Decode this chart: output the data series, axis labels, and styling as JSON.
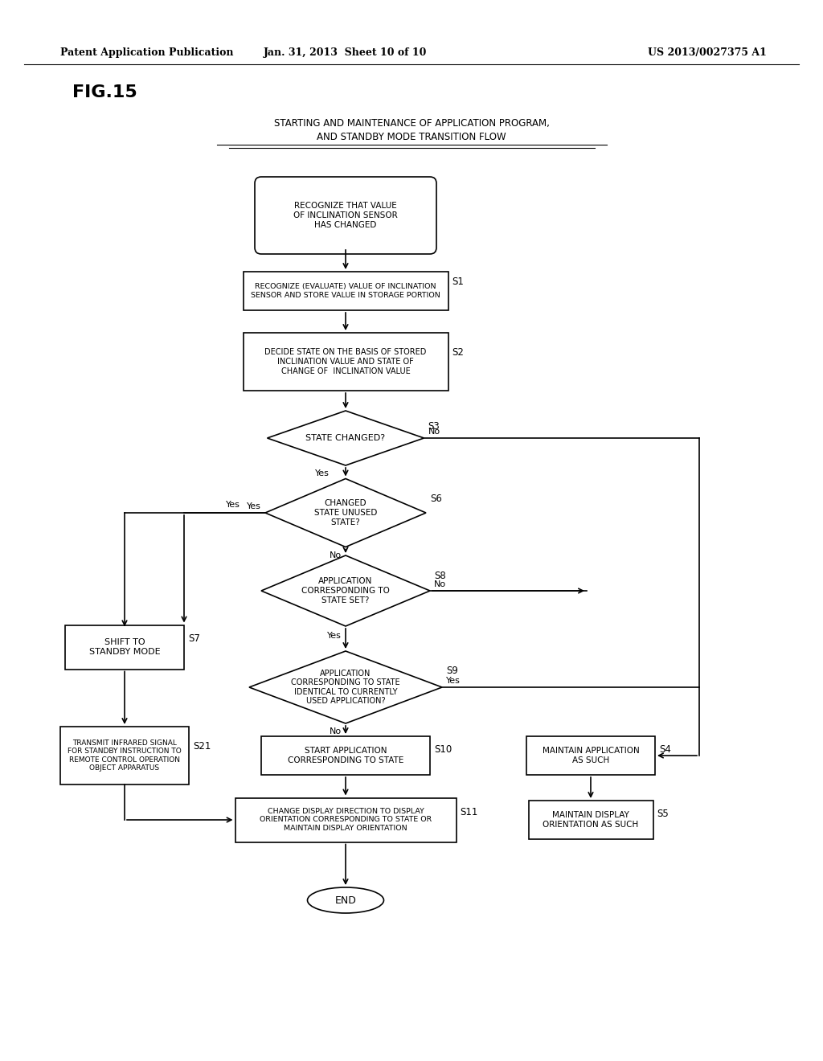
{
  "header_left": "Patent Application Publication",
  "header_mid": "Jan. 31, 2013  Sheet 10 of 10",
  "header_right": "US 2013/0027375 A1",
  "fig_label": "FIG.15",
  "title_line1": "STARTING AND MAINTENANCE OF APPLICATION PROGRAM,",
  "title_line2": "AND STANDBY MODE TRANSITION FLOW",
  "background": "#ffffff",
  "shapes": {
    "start": {
      "text": "RECOGNIZE THAT VALUE\nOF INCLINATION SENSOR\nHAS CHANGED",
      "type": "rounded_rect"
    },
    "S1": {
      "text": "RECOGNIZE (EVALUATE) VALUE OF INCLINATION\nSENSOR AND STORE VALUE IN STORAGE PORTION",
      "type": "rect",
      "label": "S1"
    },
    "S2": {
      "text": "DECIDE STATE ON THE BASIS OF STORED\nINCLINATION VALUE AND STATE OF\nCHANGE OF  INCLINATION VALUE",
      "type": "rect",
      "label": "S2"
    },
    "S3": {
      "text": "STATE CHANGED?",
      "type": "diamond",
      "label": "S3"
    },
    "S6": {
      "text": "CHANGED\nSTATE UNUSED\nSTATE?",
      "type": "diamond",
      "label": "S6"
    },
    "S8": {
      "text": "APPLICATION\nCORRESPONDING TO\nSTATE SET?",
      "type": "diamond",
      "label": "S8"
    },
    "S7": {
      "text": "SHIFT TO\nSTANDBY MODE",
      "type": "rect",
      "label": "S7"
    },
    "S9": {
      "text": "APPLICATION\nCORRESPONDING TO STATE\nIDENTICAL TO CURRENTLY\nUSED APPLICATION?",
      "type": "diamond",
      "label": "S9"
    },
    "S21": {
      "text": "TRANSMIT INFRARED SIGNAL\nFOR STANDBY INSTRUCTION TO\nREMOTE CONTROL OPERATION\nOBJECT APPARATUS",
      "type": "rect",
      "label": "S21"
    },
    "S10": {
      "text": "START APPLICATION\nCORRESPONDING TO STATE",
      "type": "rect",
      "label": "S10"
    },
    "S4": {
      "text": "MAINTAIN APPLICATION\nAS SUCH",
      "type": "rect",
      "label": "S4"
    },
    "S11": {
      "text": "CHANGE DISPLAY DIRECTION TO DISPLAY\nORIENTATION CORRESPONDING TO STATE OR\nMAINTAIN DISPLAY ORIENTATION",
      "type": "rect",
      "label": "S11"
    },
    "S5": {
      "text": "MAINTAIN DISPLAY\nORIENTATION AS SUCH",
      "type": "rect",
      "label": "S5"
    },
    "end": {
      "text": "END",
      "type": "oval"
    }
  }
}
